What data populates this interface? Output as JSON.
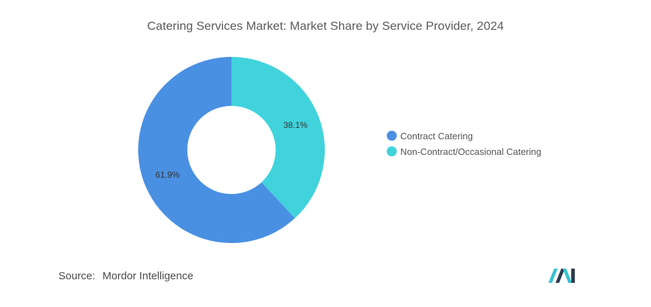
{
  "header": {
    "title": "Catering Services Market: Market Share by Service Provider, 2024"
  },
  "chart_data": {
    "type": "pie",
    "donut": true,
    "title": "Catering Services Market: Market Share by Service Provider, 2024",
    "categories": [
      "Contract Catering",
      "Non-Contract/Occasional Catering"
    ],
    "values": [
      61.9,
      38.1
    ],
    "labels": [
      "61.9%",
      "38.1%"
    ],
    "colors": [
      "#4a90e2",
      "#40d3dc"
    ],
    "legend_position": "right"
  },
  "legend": {
    "items": [
      {
        "label": "Contract Catering",
        "color": "#4a90e2"
      },
      {
        "label": "Non-Contract/Occasional Catering",
        "color": "#40d3dc"
      }
    ]
  },
  "footer": {
    "source_key": "Source:",
    "source_value": "Mordor Intelligence",
    "logo_colors": [
      "#2c3e50",
      "#35c4d0"
    ]
  }
}
